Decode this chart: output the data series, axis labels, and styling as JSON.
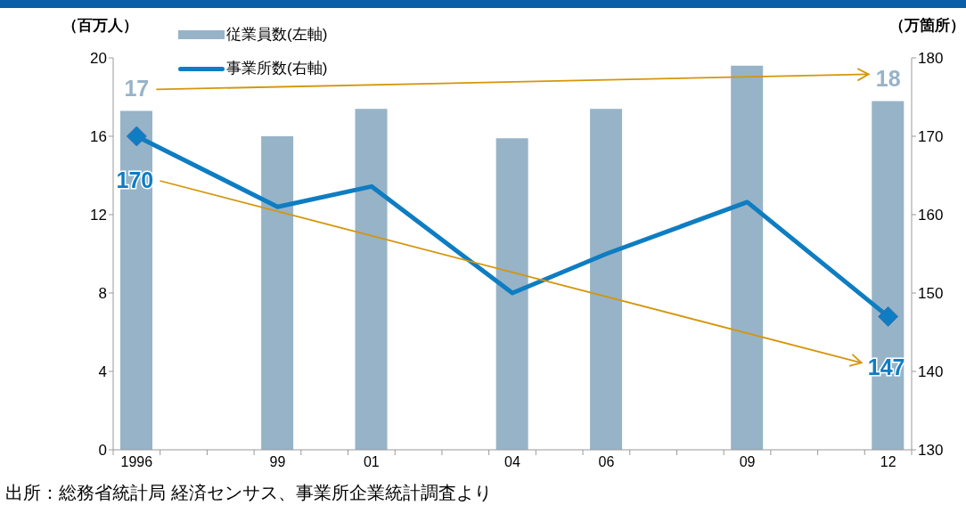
{
  "chart_data": {
    "type": "bar",
    "ylabel": "（百万人）",
    "y2label": "（万箇所）",
    "annotations": [
      "出所：総務省統計局 経済センサス、事業所企業統計調査より"
    ],
    "categories": [
      "1996",
      null,
      null,
      "99",
      null,
      "01",
      null,
      null,
      "04",
      null,
      "06",
      null,
      null,
      "09",
      null,
      null,
      "12"
    ],
    "series": [
      {
        "name": "従業員数(左軸)",
        "color": "#97b3c8",
        "values": [
          17.3,
          null,
          null,
          16.0,
          null,
          17.4,
          null,
          null,
          15.9,
          null,
          17.4,
          null,
          null,
          19.6,
          null,
          null,
          17.8
        ],
        "value_labels": [
          "17",
          null,
          null,
          null,
          null,
          null,
          null,
          null,
          null,
          null,
          null,
          null,
          null,
          null,
          null,
          null,
          "18"
        ]
      },
      {
        "name": "事業所数(右軸)",
        "type": "line",
        "axis": "y2",
        "color": "#0e7dc2",
        "values": [
          170,
          null,
          null,
          161,
          null,
          163.6,
          null,
          null,
          150,
          null,
          155,
          null,
          null,
          161.6,
          null,
          null,
          147
        ],
        "value_labels": [
          "170",
          null,
          null,
          null,
          null,
          null,
          null,
          null,
          null,
          null,
          null,
          null,
          null,
          null,
          null,
          null,
          "147"
        ]
      }
    ],
    "ylim": [
      0,
      20
    ],
    "yticks": [
      0,
      4,
      8,
      12,
      16,
      20
    ],
    "y2lim": [
      130,
      180
    ],
    "y2ticks": [
      130,
      140,
      150,
      160,
      170,
      180
    ],
    "legend": "top left",
    "grid": false
  }
}
